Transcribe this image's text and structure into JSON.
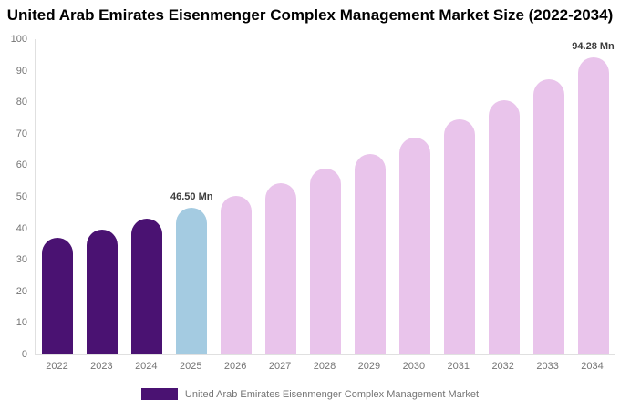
{
  "chart_data": {
    "type": "bar",
    "title": "United Arab Emirates Eisenmenger Complex Management Market Size (2022-2034)",
    "categories": [
      "2022",
      "2023",
      "2024",
      "2025",
      "2026",
      "2027",
      "2028",
      "2029",
      "2030",
      "2031",
      "2032",
      "2033",
      "2034"
    ],
    "values": [
      36.9,
      39.7,
      43.0,
      46.5,
      50.3,
      54.4,
      58.9,
      63.7,
      68.9,
      74.5,
      80.6,
      87.2,
      94.28
    ],
    "bar_colors": [
      "#4a1272",
      "#4a1272",
      "#4a1272",
      "#a4cbe1",
      "#e9c4eb",
      "#e9c4eb",
      "#e9c4eb",
      "#e9c4eb",
      "#e9c4eb",
      "#e9c4eb",
      "#e9c4eb",
      "#e9c4eb",
      "#e9c4eb"
    ],
    "annotations": [
      {
        "category": "2025",
        "text": "46.50 Mn"
      },
      {
        "category": "2034",
        "text": "94.28 Mn"
      }
    ],
    "xlabel": "",
    "ylabel": "",
    "ylim": [
      0,
      100
    ],
    "yticks": [
      0,
      10,
      20,
      30,
      40,
      50,
      60,
      70,
      80,
      90,
      100
    ],
    "grid": false,
    "legend": {
      "position": "bottom",
      "entries": [
        {
          "label": "United Arab Emirates Eisenmenger Complex Management Market",
          "color": "#4a1272"
        }
      ]
    },
    "colors": {
      "historic_bar": "#4a1272",
      "base_year_bar": "#a4cbe1",
      "forecast_bar": "#e9c4eb",
      "axis_line": "#e0e0e0",
      "axis_text": "#757575",
      "title_text": "#000000",
      "annotation_text": "#3d3d3d"
    }
  }
}
